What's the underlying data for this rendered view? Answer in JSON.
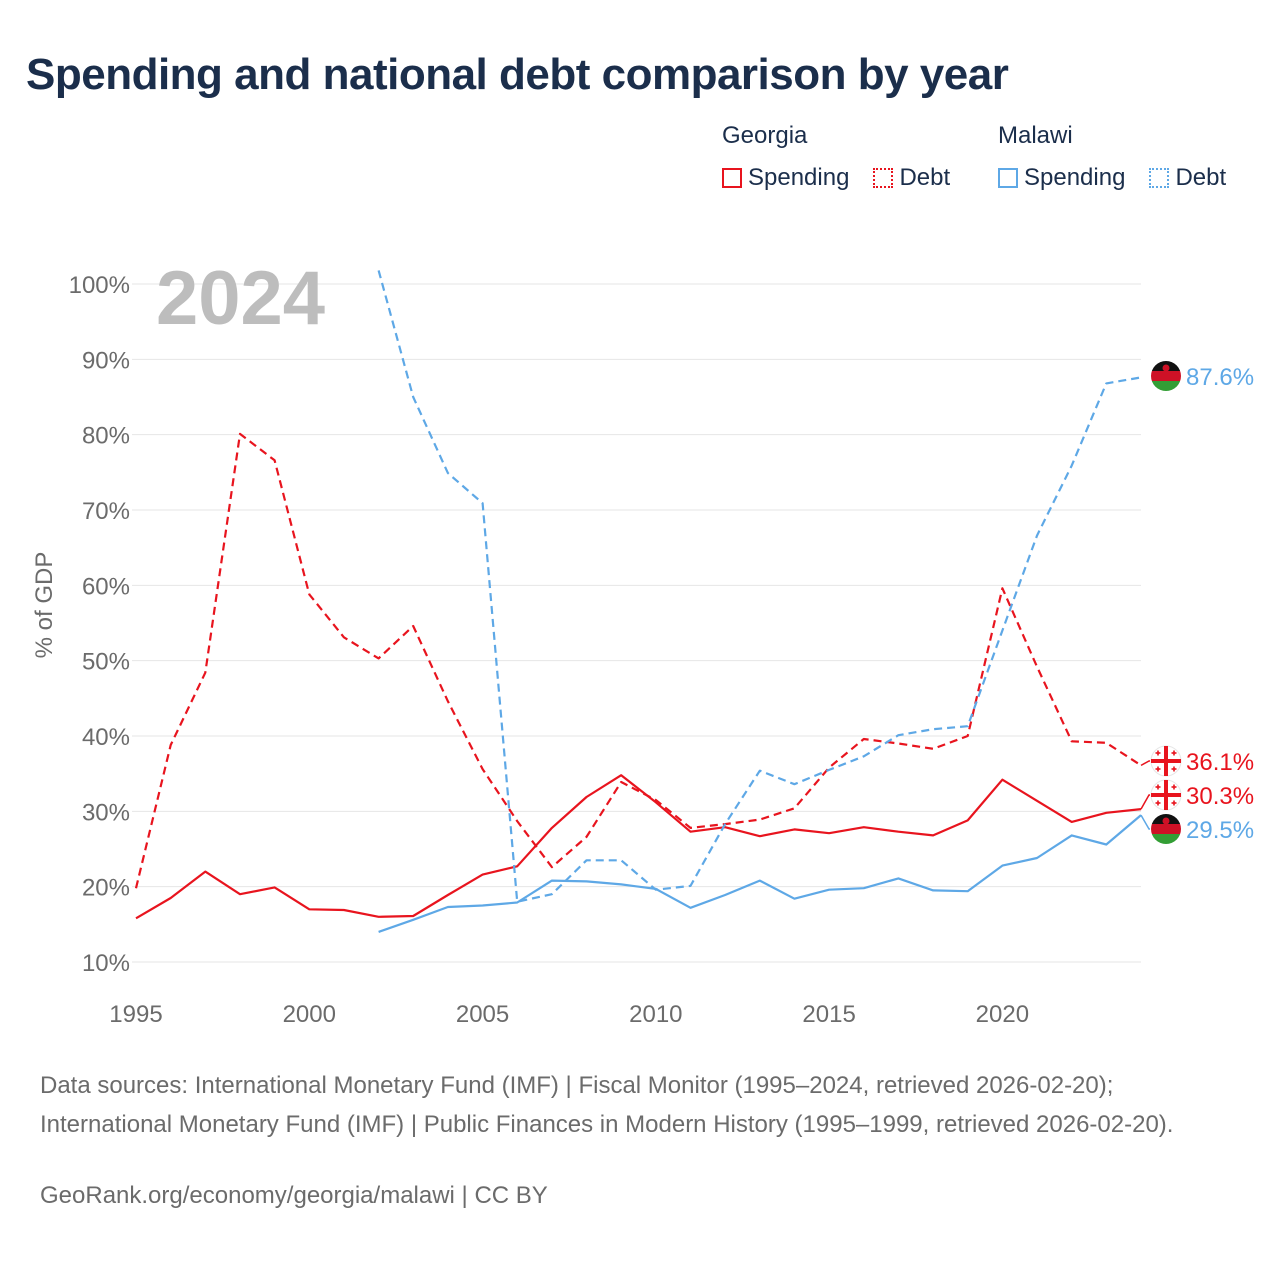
{
  "title": "Spending and national debt comparison by year",
  "legend": {
    "groups": [
      {
        "country": "Georgia",
        "items": [
          {
            "label": "Spending",
            "style": "solid"
          },
          {
            "label": "Debt",
            "style": "dashed"
          }
        ],
        "color": "#e8141e"
      },
      {
        "country": "Malawi",
        "items": [
          {
            "label": "Spending",
            "style": "solid"
          },
          {
            "label": "Debt",
            "style": "dashed"
          }
        ],
        "color": "#5ea8e6"
      }
    ]
  },
  "chart_data": {
    "type": "line",
    "year_watermark": "2024",
    "ylabel": "% of GDP",
    "ylim": [
      10,
      100
    ],
    "yticks": [
      10,
      20,
      30,
      40,
      50,
      60,
      70,
      80,
      90,
      100
    ],
    "ytick_labels": [
      "10%",
      "20%",
      "30%",
      "40%",
      "50%",
      "60%",
      "70%",
      "80%",
      "90%",
      "100%"
    ],
    "xlim": [
      1995,
      2024
    ],
    "xticks": [
      1995,
      2000,
      2005,
      2010,
      2015,
      2020
    ],
    "xtick_labels": [
      "1995",
      "2000",
      "2005",
      "2010",
      "2015",
      "2020"
    ],
    "series": [
      {
        "name": "Georgia Spending",
        "country": "Georgia",
        "kind": "spending",
        "color": "#e8141e",
        "dash": false,
        "start_year": 1995,
        "values": [
          15.8,
          18.5,
          22.0,
          19.0,
          19.9,
          17.0,
          16.9,
          16.0,
          16.1,
          18.9,
          21.6,
          22.7,
          27.8,
          31.9,
          34.8,
          31.2,
          27.3,
          27.9,
          26.7,
          27.6,
          27.1,
          27.9,
          27.3,
          26.8,
          28.8,
          34.2,
          31.4,
          28.6,
          29.8,
          30.3
        ],
        "end_label": "30.3%"
      },
      {
        "name": "Georgia Debt",
        "country": "Georgia",
        "kind": "debt",
        "color": "#e8141e",
        "dash": true,
        "start_year": 1995,
        "values": [
          19.8,
          38.8,
          48.4,
          80.1,
          76.6,
          58.8,
          53.1,
          50.3,
          54.6,
          44.6,
          35.6,
          28.7,
          22.6,
          26.6,
          33.9,
          31.5,
          27.8,
          28.3,
          28.9,
          30.4,
          35.8,
          39.6,
          39.0,
          38.3,
          40.0,
          59.6,
          49.2,
          39.3,
          39.1,
          36.1
        ],
        "end_label": "36.1%"
      },
      {
        "name": "Malawi Spending",
        "country": "Malawi",
        "kind": "spending",
        "color": "#5ea8e6",
        "dash": false,
        "start_year": 2002,
        "values": [
          14.0,
          15.6,
          17.3,
          17.5,
          17.9,
          20.8,
          20.7,
          20.3,
          19.7,
          17.2,
          18.9,
          20.8,
          18.4,
          19.6,
          19.8,
          21.1,
          19.5,
          19.4,
          22.8,
          23.8,
          26.8,
          25.6,
          29.5
        ],
        "end_label": "29.5%"
      },
      {
        "name": "Malawi Debt",
        "country": "Malawi",
        "kind": "debt",
        "color": "#5ea8e6",
        "dash": true,
        "start_year": 2002,
        "values": [
          101.8,
          85.0,
          74.9,
          70.9,
          18.0,
          19.0,
          23.5,
          23.5,
          19.6,
          20.1,
          28.3,
          35.4,
          33.6,
          35.5,
          37.3,
          40.1,
          40.9,
          41.3,
          54.0,
          66.6,
          75.9,
          86.8,
          87.6
        ],
        "end_label": "87.6%"
      }
    ]
  },
  "sources": {
    "text": "Data sources: International Monetary Fund (IMF) | Fiscal Monitor (1995–2024, retrieved 2026-02-20); International Monetary Fund (IMF) | Public Finances in Modern History (1995–1999, retrieved 2026-02-20).",
    "credit": "GeoRank.org/economy/georgia/malawi | CC BY"
  },
  "colors": {
    "georgia": "#e8141e",
    "malawi": "#5ea8e6",
    "title": "#1b2e4b",
    "grid": "#e6e6e6",
    "watermark": "#bdbdbd"
  }
}
